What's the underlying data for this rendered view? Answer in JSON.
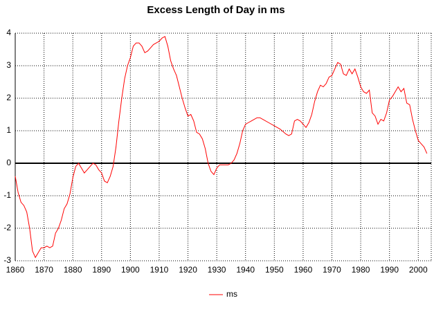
{
  "chart_data": {
    "type": "line",
    "title": "Excess Length of Day in ms",
    "x": [
      1860,
      1861,
      1862,
      1863,
      1864,
      1865,
      1866,
      1867,
      1868,
      1869,
      1870,
      1871,
      1872,
      1873,
      1874,
      1875,
      1876,
      1877,
      1878,
      1879,
      1880,
      1881,
      1882,
      1883,
      1884,
      1885,
      1886,
      1887,
      1888,
      1889,
      1890,
      1891,
      1892,
      1893,
      1894,
      1895,
      1896,
      1897,
      1898,
      1899,
      1900,
      1901,
      1902,
      1903,
      1904,
      1905,
      1906,
      1907,
      1908,
      1909,
      1910,
      1911,
      1912,
      1913,
      1914,
      1915,
      1916,
      1917,
      1918,
      1919,
      1920,
      1921,
      1922,
      1923,
      1924,
      1925,
      1926,
      1927,
      1928,
      1929,
      1930,
      1931,
      1932,
      1933,
      1934,
      1935,
      1936,
      1937,
      1938,
      1939,
      1940,
      1941,
      1942,
      1943,
      1944,
      1945,
      1946,
      1948,
      1950,
      1952,
      1954,
      1955,
      1956,
      1957,
      1958,
      1959,
      1960,
      1961,
      1962,
      1963,
      1964,
      1965,
      1966,
      1967,
      1968,
      1969,
      1970,
      1971,
      1972,
      1973,
      1974,
      1975,
      1976,
      1977,
      1978,
      1979,
      1980,
      1981,
      1982,
      1983,
      1984,
      1985,
      1986,
      1987,
      1988,
      1989,
      1990,
      1991,
      1992,
      1993,
      1994,
      1995,
      1996,
      1997,
      1998,
      1999,
      2000,
      2001,
      2002,
      2003
    ],
    "series": [
      {
        "name": "ms",
        "color": "#ff0000",
        "values": [
          -0.4,
          -0.9,
          -1.2,
          -1.3,
          -1.5,
          -2.0,
          -2.7,
          -2.9,
          -2.75,
          -2.6,
          -2.6,
          -2.55,
          -2.6,
          -2.55,
          -2.15,
          -2.0,
          -1.75,
          -1.4,
          -1.25,
          -0.95,
          -0.45,
          -0.1,
          0.0,
          -0.15,
          -0.3,
          -0.2,
          -0.1,
          0.0,
          -0.05,
          -0.2,
          -0.3,
          -0.55,
          -0.6,
          -0.4,
          -0.1,
          0.5,
          1.3,
          2.0,
          2.6,
          3.0,
          3.25,
          3.6,
          3.7,
          3.7,
          3.6,
          3.4,
          3.45,
          3.55,
          3.65,
          3.7,
          3.75,
          3.85,
          3.9,
          3.6,
          3.15,
          2.9,
          2.7,
          2.35,
          2.0,
          1.7,
          1.45,
          1.5,
          1.3,
          0.95,
          0.9,
          0.75,
          0.45,
          0.0,
          -0.25,
          -0.35,
          -0.15,
          -0.05,
          -0.05,
          -0.05,
          -0.05,
          0.0,
          0.1,
          0.3,
          0.6,
          1.0,
          1.2,
          1.25,
          1.3,
          1.35,
          1.4,
          1.4,
          1.35,
          1.25,
          1.15,
          1.05,
          0.9,
          0.85,
          0.9,
          1.3,
          1.35,
          1.3,
          1.2,
          1.1,
          1.25,
          1.5,
          1.9,
          2.2,
          2.4,
          2.35,
          2.45,
          2.65,
          2.7,
          2.9,
          3.1,
          3.05,
          2.75,
          2.7,
          2.9,
          2.75,
          2.9,
          2.65,
          2.35,
          2.2,
          2.15,
          2.25,
          1.55,
          1.45,
          1.2,
          1.35,
          1.3,
          1.55,
          1.95,
          2.05,
          2.2,
          2.35,
          2.2,
          2.3,
          1.85,
          1.8,
          1.35,
          1.0,
          0.7,
          0.6,
          0.5,
          0.3
        ]
      }
    ],
    "xlim": [
      1860,
      2004.5
    ],
    "xticks": [
      1860,
      1870,
      1880,
      1890,
      1900,
      1910,
      1920,
      1930,
      1940,
      1950,
      1960,
      1970,
      1980,
      1990,
      2000
    ],
    "ylim": [
      -3,
      4
    ],
    "yticks": [
      -3,
      -2,
      -1,
      0,
      1,
      2,
      3,
      4
    ],
    "grid": true
  }
}
